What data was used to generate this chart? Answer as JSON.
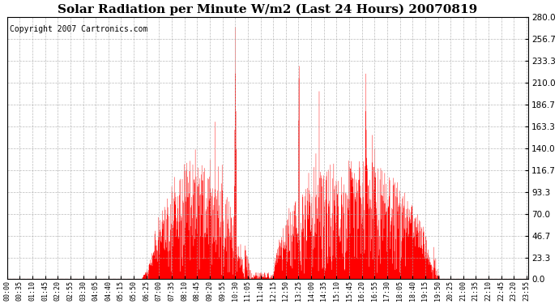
{
  "title": "Solar Radiation per Minute W/m2 (Last 24 Hours) 20070819",
  "copyright": "Copyright 2007 Cartronics.com",
  "ymin": 0.0,
  "ymax": 280.0,
  "yticks": [
    0.0,
    23.3,
    46.7,
    70.0,
    93.3,
    116.7,
    140.0,
    163.3,
    186.7,
    210.0,
    233.3,
    256.7,
    280.0
  ],
  "fill_color": "#FF0000",
  "bg_color": "#FFFFFF",
  "grid_color": "#AAAAAA",
  "title_fontsize": 11,
  "copyright_fontsize": 7,
  "tick_step_minutes": 35
}
